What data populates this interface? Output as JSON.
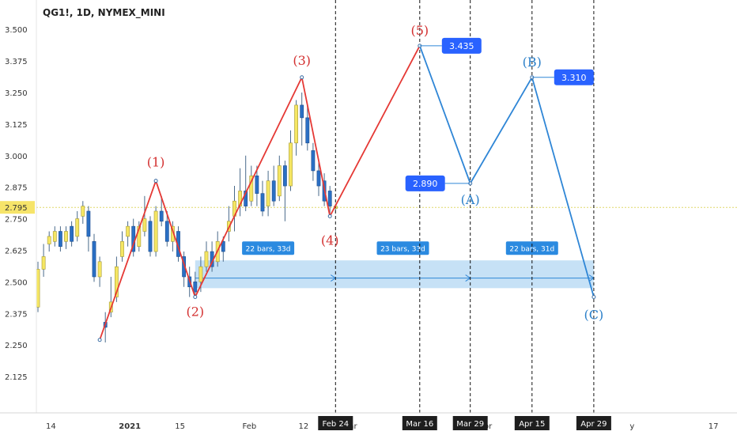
{
  "chart_data": {
    "type": "candlestick",
    "title": "QG1!, 1D, NYMEX_MINI",
    "current_price": {
      "label": "2.795",
      "value": 2.795
    },
    "y_ticks": [
      "3.500",
      "3.375",
      "3.250",
      "3.125",
      "3.000",
      "2.875",
      "2.750",
      "2.625",
      "2.500",
      "2.375",
      "2.250",
      "2.125"
    ],
    "y_tick_values": [
      3.5,
      3.375,
      3.25,
      3.125,
      3.0,
      2.875,
      2.75,
      2.625,
      2.5,
      2.375,
      2.25,
      2.125
    ],
    "ylim": [
      2.05,
      3.56
    ],
    "x_ticks": [
      {
        "label": "14",
        "t": 0
      },
      {
        "label": "2021",
        "t": 13,
        "bold": true
      },
      {
        "label": "15",
        "t": 23
      },
      {
        "label": "Feb",
        "t": 35
      },
      {
        "label": "12",
        "t": 45
      },
      {
        "label": "ar",
        "t": 54
      },
      {
        "label": "pr",
        "t": 78
      },
      {
        "label": "y",
        "t": 104
      },
      {
        "label": "17",
        "t": 118
      }
    ],
    "candles": [
      [
        2.4,
        2.55,
        2.38,
        2.58
      ],
      [
        2.55,
        2.6,
        2.52,
        2.65
      ],
      [
        2.65,
        2.68,
        2.62,
        2.7
      ],
      [
        2.66,
        2.7,
        2.64,
        2.72
      ],
      [
        2.7,
        2.64,
        2.62,
        2.72
      ],
      [
        2.66,
        2.7,
        2.63,
        2.72
      ],
      [
        2.72,
        2.66,
        2.64,
        2.74
      ],
      [
        2.68,
        2.75,
        2.66,
        2.78
      ],
      [
        2.76,
        2.8,
        2.73,
        2.82
      ],
      [
        2.78,
        2.68,
        2.62,
        2.8
      ],
      [
        2.66,
        2.52,
        2.5,
        2.69
      ],
      [
        2.52,
        2.58,
        2.48,
        2.6
      ],
      [
        2.34,
        2.32,
        2.26,
        2.38
      ],
      [
        2.38,
        2.42,
        2.36,
        2.52
      ],
      [
        2.44,
        2.56,
        2.42,
        2.6
      ],
      [
        2.6,
        2.66,
        2.58,
        2.7
      ],
      [
        2.68,
        2.72,
        2.64,
        2.74
      ],
      [
        2.72,
        2.62,
        2.6,
        2.75
      ],
      [
        2.64,
        2.72,
        2.62,
        2.74
      ],
      [
        2.7,
        2.75,
        2.68,
        2.84
      ],
      [
        2.74,
        2.62,
        2.6,
        2.76
      ],
      [
        2.62,
        2.78,
        2.6,
        2.8
      ],
      [
        2.78,
        2.74,
        2.72,
        2.84
      ],
      [
        2.74,
        2.66,
        2.64,
        2.78
      ],
      [
        2.66,
        2.72,
        2.62,
        2.74
      ],
      [
        2.7,
        2.6,
        2.58,
        2.72
      ],
      [
        2.6,
        2.52,
        2.48,
        2.62
      ],
      [
        2.52,
        2.48,
        2.44,
        2.56
      ],
      [
        2.5,
        2.46,
        2.44,
        2.54
      ],
      [
        2.5,
        2.56,
        2.46,
        2.6
      ],
      [
        2.56,
        2.62,
        2.54,
        2.66
      ],
      [
        2.62,
        2.56,
        2.54,
        2.66
      ],
      [
        2.58,
        2.66,
        2.56,
        2.7
      ],
      [
        2.66,
        2.62,
        2.58,
        2.68
      ],
      [
        2.7,
        2.74,
        2.66,
        2.8
      ],
      [
        2.76,
        2.82,
        2.7,
        2.88
      ],
      [
        2.8,
        2.86,
        2.76,
        2.95
      ],
      [
        2.86,
        2.8,
        2.78,
        3.0
      ],
      [
        2.82,
        2.92,
        2.8,
        2.96
      ],
      [
        2.92,
        2.85,
        2.8,
        2.96
      ],
      [
        2.85,
        2.78,
        2.76,
        2.9
      ],
      [
        2.8,
        2.9,
        2.76,
        2.94
      ],
      [
        2.9,
        2.82,
        2.8,
        2.96
      ],
      [
        2.84,
        2.96,
        2.82,
        3.0
      ],
      [
        2.96,
        2.88,
        2.74,
        2.98
      ],
      [
        2.88,
        3.05,
        2.86,
        3.1
      ],
      [
        3.05,
        3.2,
        3.0,
        3.22
      ],
      [
        3.2,
        3.15,
        3.04,
        3.25
      ],
      [
        3.15,
        3.05,
        3.02,
        3.2
      ],
      [
        3.02,
        2.94,
        2.9,
        3.05
      ],
      [
        2.94,
        2.88,
        2.84,
        2.98
      ],
      [
        2.9,
        2.82,
        2.8,
        2.93
      ],
      [
        2.86,
        2.8,
        2.76,
        2.88
      ],
      [
        2.79,
        2.8,
        2.78,
        2.81
      ]
    ],
    "red_waves": [
      {
        "label": "",
        "t": 11,
        "v": 2.27
      },
      {
        "label": "(1)",
        "t": 21,
        "v": 2.9
      },
      {
        "label": "(2)",
        "t": 28,
        "v": 2.44
      },
      {
        "label": "(3)",
        "t": 47,
        "v": 3.31
      },
      {
        "label": "(4)",
        "t": 52,
        "v": 2.76
      },
      {
        "label": "(5)",
        "t": 68,
        "v": 3.435
      }
    ],
    "blue_waves": [
      {
        "label": "(A)",
        "t": 77,
        "v": 2.89
      },
      {
        "label": "(B)",
        "t": 88,
        "v": 3.31
      },
      {
        "label": "(C)",
        "t": 99,
        "v": 2.44
      }
    ],
    "price_tags": [
      {
        "label": "3.435",
        "t": 68,
        "v": 3.435
      },
      {
        "label": "2.890",
        "t": 77,
        "v": 2.89
      },
      {
        "label": "3.310",
        "t": 88,
        "v": 3.31
      }
    ],
    "date_markers": [
      {
        "label": "Feb 24",
        "t": 53
      },
      {
        "label": "Mar 16",
        "t": 68
      },
      {
        "label": "Mar 29",
        "t": 77
      },
      {
        "label": "Apr 15",
        "t": 88
      },
      {
        "label": "Apr 29",
        "t": 99
      }
    ],
    "time_ranges": [
      {
        "label": "22 bars, 33d",
        "t0": 29,
        "t1": 53
      },
      {
        "label": "23 bars, 33d",
        "t0": 53,
        "t1": 77
      },
      {
        "label": "22 bars, 31d",
        "t0": 77,
        "t1": 99
      }
    ],
    "range_box": {
      "v_top": 2.585,
      "v_bottom": 2.475,
      "t0": 28,
      "t1": 99,
      "v_mid": 2.515
    },
    "colors": {
      "bull": "#f5e663",
      "bear": "#2a6fc4",
      "wick": "#4a6a8a",
      "red_wave": "#e53935",
      "blue_wave": "#2f86d6",
      "tag": "#2962ff",
      "range_fill": "#bcdcf5",
      "current_line": "#e0d86a",
      "current_tag": "#f6e46a"
    }
  }
}
